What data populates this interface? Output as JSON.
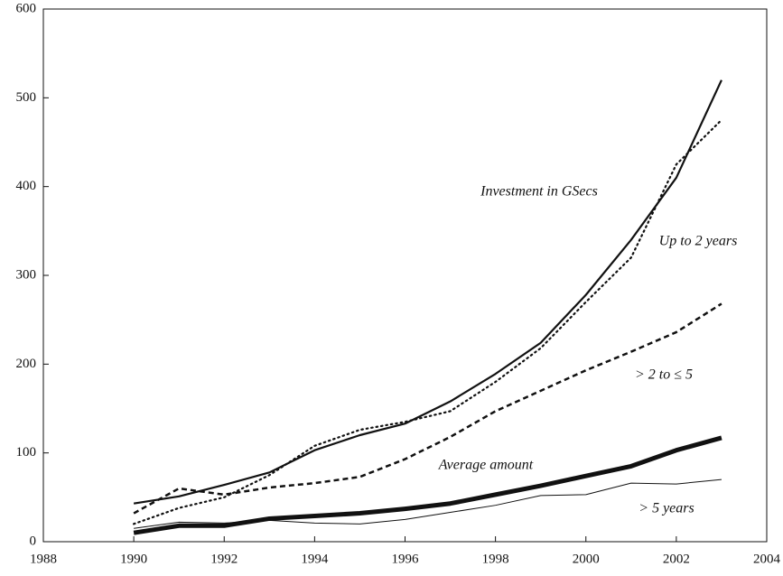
{
  "chart_data": {
    "type": "line",
    "x": [
      1990,
      1991,
      1992,
      1993,
      1994,
      1995,
      1996,
      1997,
      1998,
      1999,
      2000,
      2001,
      2002,
      2003
    ],
    "xlim": [
      1988,
      2004
    ],
    "xticks": [
      1988,
      1990,
      1992,
      1994,
      1996,
      1998,
      2000,
      2002,
      2004
    ],
    "ylim": [
      0,
      600
    ],
    "yticks": [
      0,
      100,
      200,
      300,
      400,
      500,
      600
    ],
    "series": [
      {
        "name": "Investment in GSecs",
        "color": "#111111",
        "linestyle": "solid",
        "linewidth": 2.2,
        "values": [
          43,
          51,
          64,
          78,
          103,
          120,
          133,
          158,
          189,
          224,
          278,
          340,
          410,
          520
        ]
      },
      {
        "name": "Up to 2 years",
        "color": "#111111",
        "linestyle": "dotted",
        "linewidth": 2.2,
        "values": [
          20,
          38,
          50,
          75,
          108,
          126,
          135,
          147,
          180,
          218,
          270,
          320,
          425,
          475
        ]
      },
      {
        "name": "> 2 to ≤ 5",
        "color": "#111111",
        "linestyle": "dashed",
        "linewidth": 2.5,
        "values": [
          32,
          60,
          53,
          61,
          66,
          73,
          93,
          118,
          147,
          170,
          193,
          214,
          236,
          268
        ]
      },
      {
        "name": "Average amount",
        "color": "#111111",
        "linestyle": "solid",
        "linewidth": 5,
        "values": [
          10,
          18,
          18,
          26,
          29,
          32,
          37,
          43,
          53,
          63,
          74,
          85,
          103,
          117
        ]
      },
      {
        "name": "> 5 years",
        "color": "#111111",
        "linestyle": "solid",
        "linewidth": 1,
        "values": [
          15,
          22,
          21,
          24,
          21,
          20,
          25,
          33,
          41,
          52,
          53,
          66,
          65,
          70
        ]
      }
    ]
  }
}
